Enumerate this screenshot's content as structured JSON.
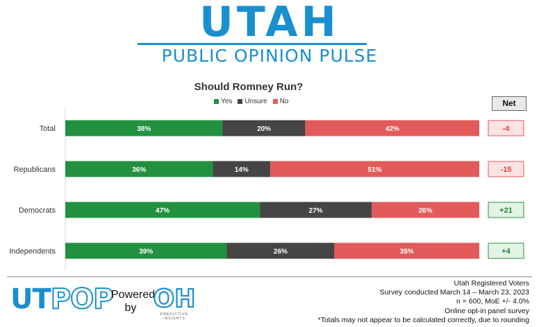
{
  "brand": {
    "title": "UTAH",
    "subtitle": "PUBLIC OPINION PULSE"
  },
  "legend": [
    {
      "label": "Yes",
      "color": "#22913f"
    },
    {
      "label": "Unsure",
      "color": "#454545"
    },
    {
      "label": "No",
      "color": "#e25a5a"
    }
  ],
  "net_header": "Net",
  "chart_data": {
    "type": "bar",
    "orientation": "horizontal",
    "stacked": true,
    "title": "Should Romney Run?",
    "categories": [
      "Total",
      "Republicans",
      "Democrats",
      "Independents"
    ],
    "series": [
      {
        "name": "Yes",
        "values": [
          38,
          36,
          47,
          39
        ],
        "labels": [
          "38%",
          "36%",
          "47%",
          "39%"
        ],
        "color": "#22913f"
      },
      {
        "name": "Unsure",
        "values": [
          20,
          14,
          27,
          26
        ],
        "labels": [
          "20%",
          "14%",
          "27%",
          "26%"
        ],
        "color": "#454545"
      },
      {
        "name": "No",
        "values": [
          42,
          51,
          26,
          35
        ],
        "labels": [
          "42%",
          "51%",
          "26%",
          "35%"
        ],
        "color": "#e25a5a"
      }
    ],
    "net": [
      {
        "label": "-4",
        "sign": "negative"
      },
      {
        "label": "-15",
        "sign": "negative"
      },
      {
        "label": "+21",
        "sign": "positive"
      },
      {
        "label": "+4",
        "sign": "positive"
      }
    ],
    "legend_position": "top-center",
    "grid": false
  },
  "footer": {
    "logo_ut": "UT",
    "logo_pop": "POP",
    "powered_line1": "Powered",
    "powered_line2": "by",
    "oh_logo_text": "OH",
    "oh_caption": "PREDICTIVE INSIGHTS",
    "notes": [
      "Utah Registered Voters",
      "Survey conducted March 14 – March 23, 2023",
      "n = 600, MoE +/- 4.0%",
      "Online opt-in panel survey",
      "*Totals may not appear to be calculated correctly, due to rounding"
    ]
  }
}
